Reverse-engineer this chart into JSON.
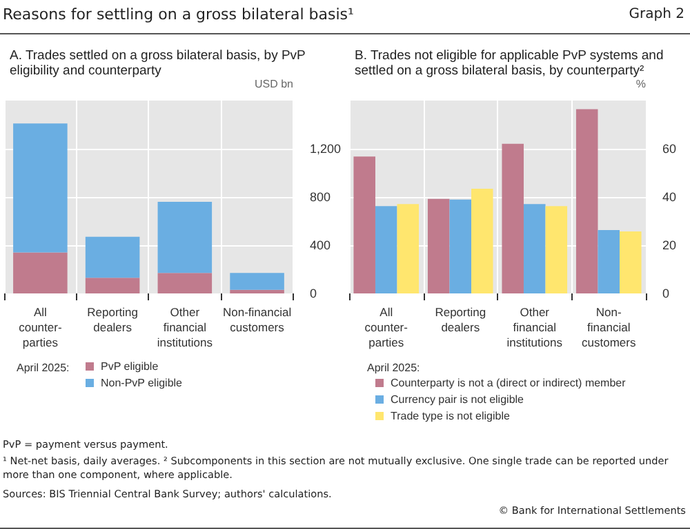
{
  "chart_data": [
    {
      "type": "other",
      "title": "Reasons for settling on a gross bilateral basis¹",
      "annotations": [
        "Graph 2",
        "PvP = payment versus payment.",
        "¹  Net-net basis, daily averages.   ²  Subcomponents in this section are not mutually exclusive. One single trade can be reported under more than one component, where applicable.",
        "Sources: BIS Triennial Central Bank Survey; authors' calculations.",
        "© Bank for International Settlements"
      ]
    },
    {
      "type": "bar",
      "title": "A. Trades settled on a gross bilateral basis, by PvP eligibility and counterparty",
      "ylabel": "USD bn",
      "categories": [
        "All\ncounter-\nparties",
        "Reporting\ndealers",
        "Other\nfinancial\ninstitutions",
        "Non-financial\ncustomers"
      ],
      "stacked": true,
      "series": [
        {
          "name": "PvP eligible",
          "color": "#c07b8d",
          "values": [
            340,
            130,
            170,
            30
          ]
        },
        {
          "name": "Non-PvP eligible",
          "color": "#6aaee2",
          "values": [
            1070,
            340,
            590,
            140
          ]
        }
      ],
      "ylim": [
        0,
        1600
      ],
      "yticks": [
        0,
        400,
        800,
        {
          "value": 1200,
          "label": "1,200"
        }
      ],
      "grid": true,
      "legend": "bottom",
      "legend_title": "April 2025:"
    },
    {
      "type": "bar",
      "title": "B. Trades not eligible for applicable PvP systems and settled on a gross bilateral basis, by counterparty²",
      "ylabel": "%",
      "categories": [
        "All\ncounter-\nparties",
        "Reporting\ndealers",
        "Other\nfinancial\ninstitutions",
        "Non-\nfinancial\ncustomers"
      ],
      "series": [
        {
          "name": "Counterparty is not a (direct or indirect) member",
          "color": "#c07b8d",
          "values": [
            56.8,
            39.2,
            62.1,
            76.4
          ]
        },
        {
          "name": "Currency pair is not eligible",
          "color": "#6aaee2",
          "values": [
            36.2,
            38.9,
            37.1,
            26.3
          ]
        },
        {
          "name": "Trade type is not eligible",
          "color": "#ffe66e",
          "values": [
            37.1,
            43.4,
            36.2,
            25.7
          ]
        }
      ],
      "ylim": [
        0,
        80
      ],
      "yticks": [
        0,
        20,
        40,
        60
      ],
      "grid": true,
      "legend": "bottom",
      "legend_title": "April 2025:"
    }
  ]
}
